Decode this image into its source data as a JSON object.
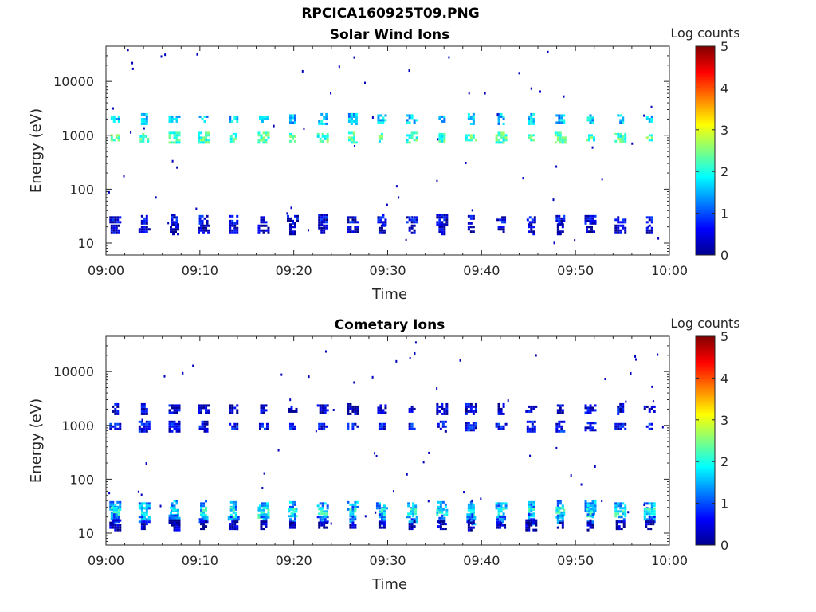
{
  "page_title": "RPCICA160925T09.PNG",
  "colorbar": {
    "label": "Log counts",
    "ticks": [
      "0",
      "1",
      "2",
      "3",
      "4",
      "5"
    ],
    "range": [
      0,
      5
    ],
    "colormap": "jet"
  },
  "chart_data": [
    {
      "type": "heatmap",
      "title": "Solar Wind Ions",
      "xlabel": "Time",
      "ylabel": "Energy (eV)",
      "xticks": [
        "09:00",
        "09:10",
        "09:20",
        "09:30",
        "09:40",
        "09:50",
        "10:00"
      ],
      "yticks": [
        "10",
        "100",
        "1000",
        "10000"
      ],
      "xlim_minutes": [
        0,
        60
      ],
      "ylim_eV": [
        6,
        45000
      ],
      "yscale": "log",
      "grid": false,
      "scan_times_min": [
        1.0,
        4.1,
        7.3,
        10.4,
        13.6,
        16.8,
        19.9,
        23.1,
        26.3,
        29.4,
        32.6,
        35.8,
        38.9,
        42.1,
        45.3,
        48.4,
        51.6,
        54.8,
        57.9
      ],
      "populations": [
        {
          "energy_eV": 2000,
          "log_counts": 1.6
        },
        {
          "energy_eV": 900,
          "log_counts": 2.2
        },
        {
          "energy_eV": 27,
          "log_counts": 0.5
        },
        {
          "energy_eV": 18,
          "log_counts": 0.3
        }
      ]
    },
    {
      "type": "heatmap",
      "title": "Cometary Ions",
      "xlabel": "Time",
      "ylabel": "Energy (eV)",
      "xticks": [
        "09:00",
        "09:10",
        "09:20",
        "09:30",
        "09:40",
        "09:50",
        "10:00"
      ],
      "yticks": [
        "10",
        "100",
        "1000",
        "10000"
      ],
      "xlim_minutes": [
        0,
        60
      ],
      "ylim_eV": [
        6,
        45000
      ],
      "yscale": "log",
      "grid": false,
      "scan_times_min": [
        1.0,
        4.1,
        7.3,
        10.4,
        13.6,
        16.8,
        19.9,
        23.1,
        26.3,
        29.4,
        32.6,
        35.8,
        38.9,
        42.1,
        45.3,
        48.4,
        51.6,
        54.8,
        57.9
      ],
      "populations": [
        {
          "energy_eV": 2000,
          "log_counts": 0.4
        },
        {
          "energy_eV": 950,
          "log_counts": 0.6
        },
        {
          "energy_eV": 32,
          "log_counts": 1.4
        },
        {
          "energy_eV": 24,
          "log_counts": 1.9
        },
        {
          "energy_eV": 18,
          "log_counts": 1.2
        },
        {
          "energy_eV": 14,
          "log_counts": 0.2
        }
      ]
    }
  ]
}
